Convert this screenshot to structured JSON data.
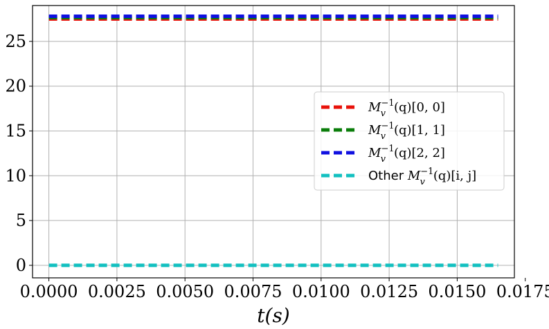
{
  "chart_data": {
    "type": "line",
    "xlabel": "t(s)",
    "ylabel": "",
    "title": "",
    "xlim": [
      -0.0006,
      0.0171
    ],
    "ylim": [
      -1.4,
      29.0
    ],
    "x_ticks": [
      "0.0000",
      "0.0025",
      "0.0050",
      "0.0075",
      "0.0100",
      "0.0125",
      "0.0150",
      "0.0175"
    ],
    "x_tick_values": [
      0.0,
      0.0025,
      0.005,
      0.0075,
      0.01,
      0.0125,
      0.015,
      0.0175
    ],
    "y_ticks": [
      "0",
      "5",
      "10",
      "15",
      "20",
      "25"
    ],
    "y_tick_values": [
      0,
      5,
      10,
      15,
      20,
      25
    ],
    "grid": true,
    "legend_position": "center-right",
    "x": [
      0.0,
      0.00165,
      0.0033,
      0.00495,
      0.0066,
      0.00825,
      0.0099,
      0.01155,
      0.0132,
      0.01485,
      0.0165
    ],
    "series": [
      {
        "legend": "M_v^{-1}(q)[0, 0]",
        "legend_parts": {
          "prefix": "",
          "base": "M",
          "sub": "v",
          "sup": "−1",
          "rest": "(q)[0, 0]"
        },
        "color": "#e8120a",
        "style": "dashed",
        "values": [
          27.5,
          27.5,
          27.5,
          27.5,
          27.5,
          27.5,
          27.5,
          27.5,
          27.5,
          27.5,
          27.5
        ]
      },
      {
        "legend": "M_v^{-1}(q)[1, 1]",
        "legend_parts": {
          "prefix": "",
          "base": "M",
          "sub": "v",
          "sup": "−1",
          "rest": "(q)[1, 1]"
        },
        "color": "#0a7d0a",
        "style": "dashed",
        "values": [
          27.65,
          27.65,
          27.65,
          27.65,
          27.65,
          27.65,
          27.65,
          27.65,
          27.65,
          27.65,
          27.65
        ]
      },
      {
        "legend": "M_v^{-1}(q)[2, 2]",
        "legend_parts": {
          "prefix": "",
          "base": "M",
          "sub": "v",
          "sup": "−1",
          "rest": "(q)[2, 2]"
        },
        "color": "#1010e0",
        "style": "dashed",
        "values": [
          27.8,
          27.8,
          27.8,
          27.8,
          27.8,
          27.8,
          27.8,
          27.8,
          27.8,
          27.8,
          27.8
        ]
      },
      {
        "legend": "Other M_v^{-1}(q)[i, j]",
        "legend_parts": {
          "prefix": "Other",
          "base": "M",
          "sub": "v",
          "sup": "−1",
          "rest": "(q)[i, j]"
        },
        "color": "#12c0c0",
        "style": "dashed",
        "values": [
          0.0,
          0.0,
          0.0,
          0.0,
          0.0,
          0.0,
          0.0,
          0.0,
          0.0,
          0.0,
          0.0
        ]
      }
    ]
  }
}
